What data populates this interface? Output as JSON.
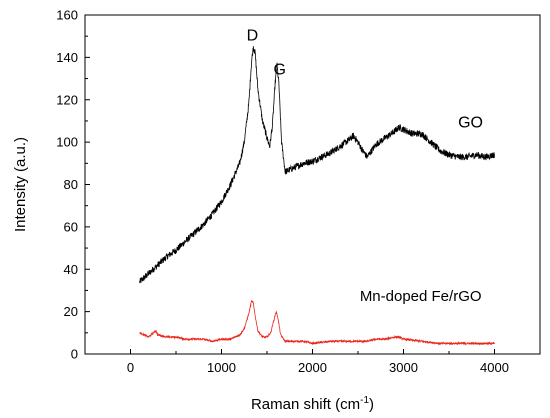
{
  "chart_data": {
    "type": "line",
    "title": "",
    "xlabel": "Raman shift (cm",
    "xlabel_sup": "-1",
    "xlabel_tail": ")",
    "ylabel": "Intensity (a.u.)",
    "xlim": [
      -500,
      4500
    ],
    "ylim": [
      0,
      160
    ],
    "x_ticks": [
      0,
      1000,
      2000,
      3000,
      4000
    ],
    "y_ticks": [
      0,
      20,
      40,
      60,
      80,
      100,
      120,
      140,
      160
    ],
    "grid": false,
    "series": [
      {
        "name": "GO",
        "color": "#000000",
        "x": [
          100,
          200,
          300,
          400,
          500,
          600,
          700,
          800,
          900,
          1000,
          1100,
          1200,
          1250,
          1300,
          1330,
          1350,
          1370,
          1400,
          1450,
          1500,
          1530,
          1560,
          1590,
          1610,
          1630,
          1660,
          1700,
          1800,
          1900,
          2000,
          2100,
          2200,
          2300,
          2400,
          2450,
          2500,
          2550,
          2600,
          2650,
          2700,
          2800,
          2900,
          2950,
          3000,
          3100,
          3200,
          3300,
          3400,
          3500,
          3600,
          3700,
          3800,
          3900,
          4000
        ],
        "y": [
          34,
          38,
          42,
          46,
          49,
          53,
          57,
          61,
          66,
          72,
          80,
          90,
          100,
          118,
          138,
          145,
          142,
          125,
          110,
          102,
          98,
          108,
          128,
          136,
          128,
          100,
          86,
          88,
          90,
          91,
          93,
          95,
          98,
          101,
          103,
          100,
          96,
          93,
          96,
          99,
          102,
          105,
          107,
          106,
          104,
          104,
          100,
          96,
          94,
          93,
          93,
          94,
          93,
          94
        ]
      },
      {
        "name": "Mn-doped Fe/rGO",
        "color": "#e8261c",
        "x": [
          100,
          150,
          200,
          250,
          280,
          300,
          400,
          500,
          600,
          700,
          800,
          900,
          1000,
          1100,
          1200,
          1250,
          1300,
          1330,
          1350,
          1370,
          1400,
          1450,
          1500,
          1540,
          1570,
          1600,
          1620,
          1650,
          1700,
          1800,
          1900,
          2000,
          2200,
          2400,
          2600,
          2700,
          2800,
          2900,
          2950,
          3000,
          3200,
          3400,
          3600,
          3800,
          4000
        ],
        "y": [
          10,
          9,
          8,
          10,
          11,
          9,
          8,
          8,
          7,
          7,
          7,
          6,
          7,
          7,
          9,
          12,
          19,
          25,
          24,
          18,
          11,
          8,
          8,
          10,
          15,
          20,
          17,
          9,
          6,
          6,
          6,
          5,
          6,
          6,
          6,
          7,
          7,
          8,
          8,
          7,
          6,
          5,
          5,
          5,
          5
        ]
      }
    ],
    "annotations": [
      {
        "text": "D",
        "x": 1340,
        "y": 148
      },
      {
        "text": "G",
        "x": 1640,
        "y": 132
      },
      {
        "text": "GO",
        "x": 3600,
        "y": 107
      },
      {
        "text": "Mn-doped Fe/rGO",
        "x": 2520,
        "y": 25
      }
    ]
  }
}
